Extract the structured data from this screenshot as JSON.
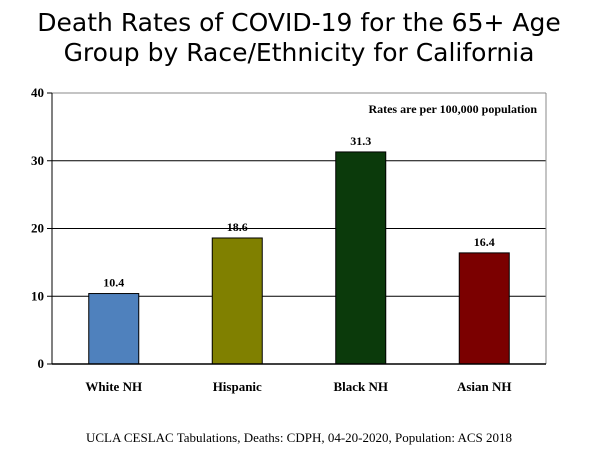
{
  "title": {
    "line1": "Death Rates of COVID-19 for the 65+ Age",
    "line2": "Group by Race/Ethnicity for California"
  },
  "source_note": "UCLA CESLAC Tabulations, Deaths: CDPH, 04-20-2020, Population: ACS 2018",
  "chart_data": {
    "type": "bar",
    "categories": [
      "White NH",
      "Hispanic",
      "Black NH",
      "Asian NH"
    ],
    "values": [
      10.4,
      18.6,
      31.3,
      16.4
    ],
    "value_labels": [
      "10.4",
      "18.6",
      "31.3",
      "16.4"
    ],
    "colors": [
      "#4f81bd",
      "#808000",
      "#0b3a0b",
      "#7b0000"
    ],
    "ylim": [
      0,
      40
    ],
    "yticks": [
      0,
      10,
      20,
      30,
      40
    ],
    "grid": true,
    "annotation": "Rates are per 100,000 population",
    "xlabel": "",
    "ylabel": ""
  }
}
